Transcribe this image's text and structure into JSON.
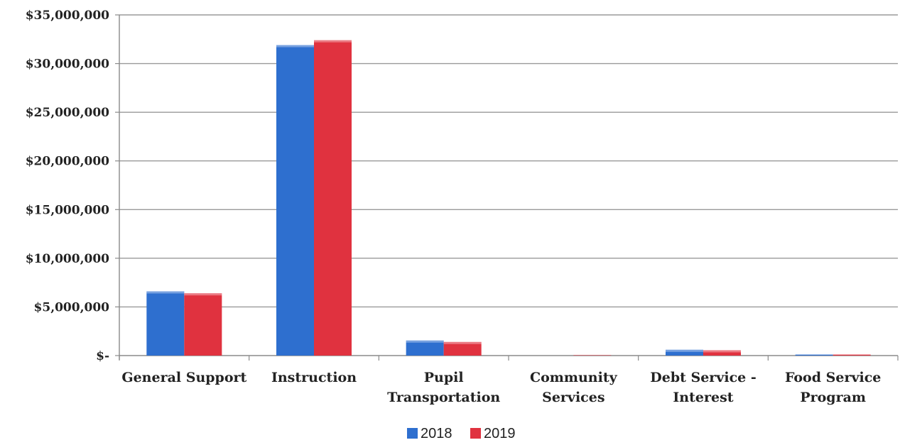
{
  "chart_data": {
    "type": "bar",
    "categories": [
      [
        "General Support"
      ],
      [
        "Instruction"
      ],
      [
        "Pupil",
        "Transportation"
      ],
      [
        "Community",
        "Services"
      ],
      [
        "Debt Service -",
        "Interest"
      ],
      [
        "Food Service",
        "Program"
      ]
    ],
    "series": [
      {
        "name": "2018",
        "color": "#2e6fcf",
        "values": [
          6600000,
          31900000,
          1550000,
          0,
          600000,
          100000
        ]
      },
      {
        "name": "2019",
        "color": "#e0323f",
        "values": [
          6400000,
          32400000,
          1400000,
          40000,
          550000,
          100000
        ]
      }
    ],
    "y_tick_values": [
      0,
      5000000,
      10000000,
      15000000,
      20000000,
      25000000,
      30000000,
      35000000
    ],
    "y_tick_labels": [
      "$-",
      "$5,000,000",
      "$10,000,000",
      "$15,000,000",
      "$20,000,000",
      "$25,000,000",
      "$30,000,000",
      "$35,000,000"
    ],
    "ylim": [
      0,
      35000000
    ],
    "grid": true,
    "legend_position": "bottom-center"
  }
}
